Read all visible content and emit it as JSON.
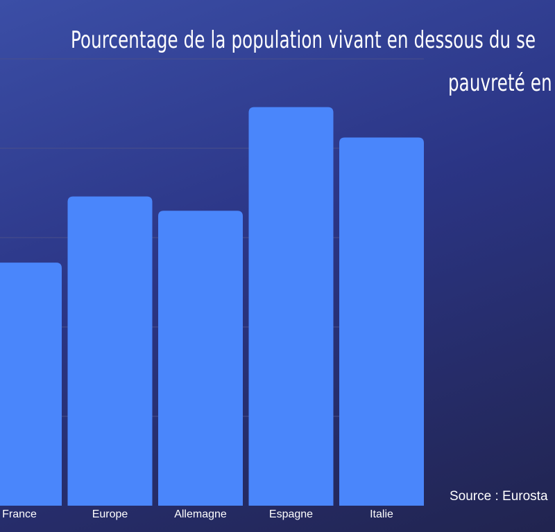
{
  "title_lines": [
    "Pourcentage de la population vivant en dessous du se",
    "pauvreté en"
  ],
  "source": "Source : Eurosta",
  "colors": {
    "bar": "#4a86fb",
    "grid": "#4a4f8a"
  },
  "chart_data": {
    "type": "bar",
    "title": "Pourcentage de la population vivant en dessous du se pauvreté en",
    "categories": [
      "France",
      "Europe",
      "Allemagne",
      "Espagne",
      "Italie"
    ],
    "values": [
      13.6,
      17.3,
      16.5,
      22.3,
      20.6
    ],
    "ylim": [
      0,
      25
    ],
    "grid": true,
    "source": "Source : Eurosta"
  }
}
